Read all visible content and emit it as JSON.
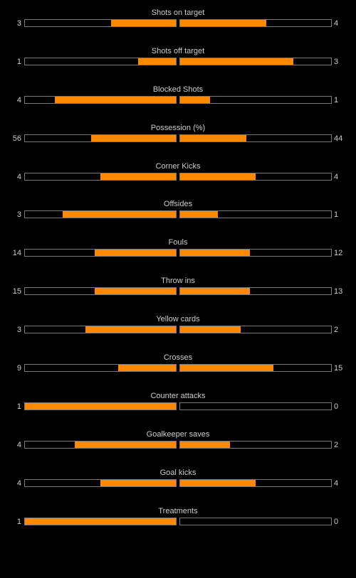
{
  "colors": {
    "background": "#000000",
    "bar_fill": "#ff8800",
    "bar_border": "#777777",
    "text": "#cccccc"
  },
  "stats": [
    {
      "label": "Shots on target",
      "home": "3",
      "away": "4",
      "home_share": 0.43,
      "away_share": 0.57
    },
    {
      "label": "Shots off target",
      "home": "1",
      "away": "3",
      "home_share": 0.25,
      "away_share": 0.75
    },
    {
      "label": "Blocked Shots",
      "home": "4",
      "away": "1",
      "home_share": 0.8,
      "away_share": 0.2
    },
    {
      "label": "Possession (%)",
      "home": "56",
      "away": "44",
      "home_share": 0.56,
      "away_share": 0.44
    },
    {
      "label": "Corner Kicks",
      "home": "4",
      "away": "4",
      "home_share": 0.5,
      "away_share": 0.5
    },
    {
      "label": "Offsides",
      "home": "3",
      "away": "1",
      "home_share": 0.75,
      "away_share": 0.25
    },
    {
      "label": "Fouls",
      "home": "14",
      "away": "12",
      "home_share": 0.54,
      "away_share": 0.46
    },
    {
      "label": "Throw ins",
      "home": "15",
      "away": "13",
      "home_share": 0.54,
      "away_share": 0.46
    },
    {
      "label": "Yellow cards",
      "home": "3",
      "away": "2",
      "home_share": 0.6,
      "away_share": 0.4
    },
    {
      "label": "Crosses",
      "home": "9",
      "away": "15",
      "home_share": 0.38,
      "away_share": 0.62
    },
    {
      "label": "Counter attacks",
      "home": "1",
      "away": "0",
      "home_share": 1.0,
      "away_share": 0.0
    },
    {
      "label": "Goalkeeper saves",
      "home": "4",
      "away": "2",
      "home_share": 0.67,
      "away_share": 0.33
    },
    {
      "label": "Goal kicks",
      "home": "4",
      "away": "4",
      "home_share": 0.5,
      "away_share": 0.5
    },
    {
      "label": "Treatments",
      "home": "1",
      "away": "0",
      "home_share": 1.0,
      "away_share": 0.0
    }
  ]
}
